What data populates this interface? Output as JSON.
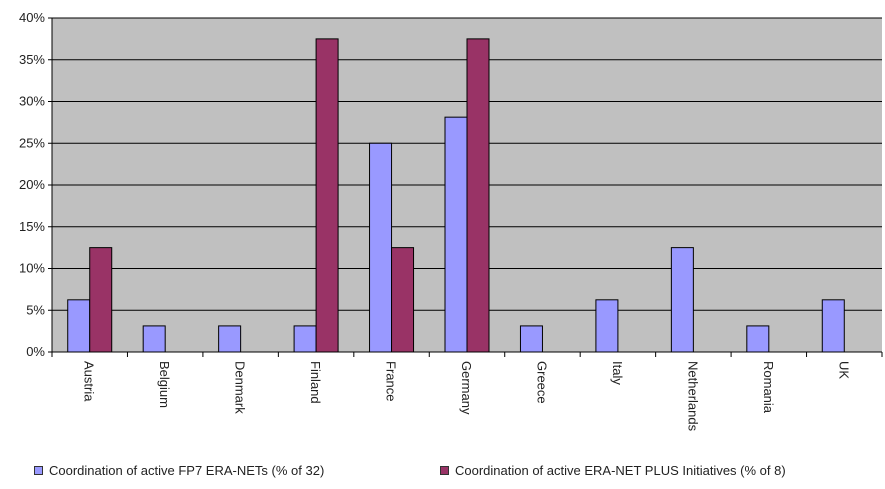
{
  "chart_data": {
    "type": "bar",
    "categories": [
      "Austria",
      "Belgium",
      "Denmark",
      "Finland",
      "France",
      "Germany",
      "Greece",
      "Italy",
      "Netherlands",
      "Romania",
      "UK"
    ],
    "series": [
      {
        "name": "Coordination of active FP7 ERA-NETs (% of 32)",
        "color": "#9999ff",
        "values": [
          6.25,
          3.125,
          3.125,
          3.125,
          25.0,
          28.125,
          3.125,
          6.25,
          12.5,
          3.125,
          6.25
        ]
      },
      {
        "name": "Coordination of active ERA-NET PLUS Initiatives (% of 8)",
        "color": "#993366",
        "values": [
          12.5,
          0,
          0,
          37.5,
          12.5,
          37.5,
          0,
          0,
          0,
          0,
          0
        ]
      }
    ],
    "ylim": [
      0,
      40
    ],
    "yticks": [
      0,
      5,
      10,
      15,
      20,
      25,
      30,
      35,
      40
    ],
    "ytick_labels": [
      "0%",
      "5%",
      "10%",
      "15%",
      "20%",
      "25%",
      "30%",
      "35%",
      "40%"
    ],
    "grid": true,
    "plot_background": "#c0c0c0",
    "legend_position": "bottom"
  }
}
